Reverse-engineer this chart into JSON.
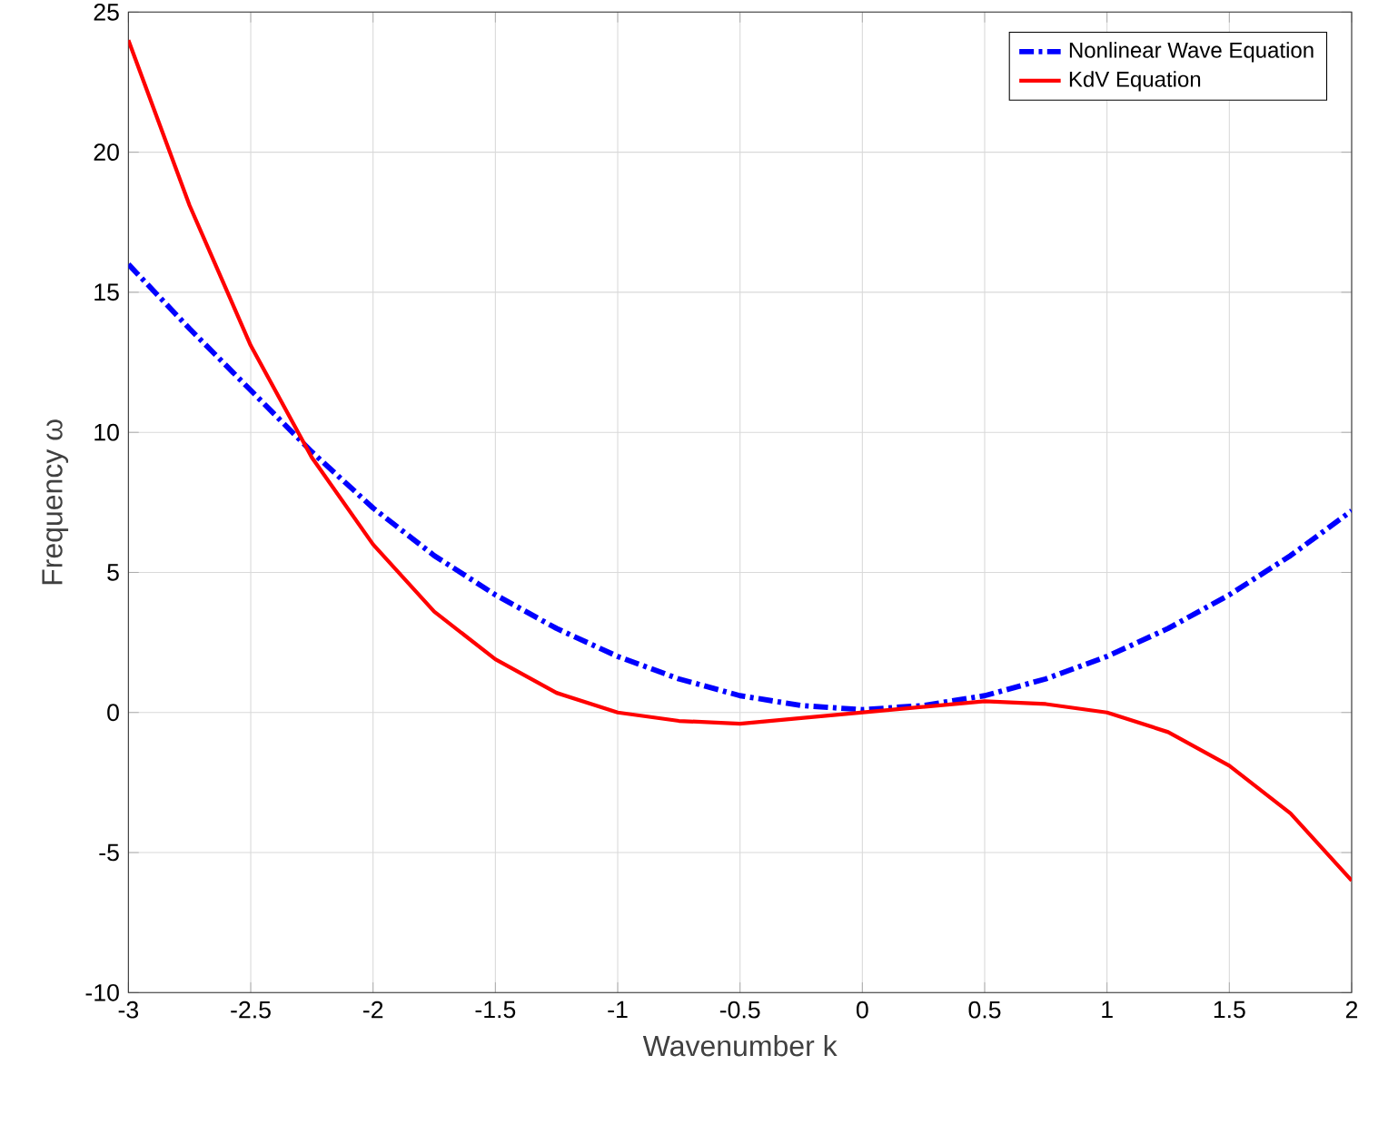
{
  "chart_data": {
    "type": "line",
    "xlabel": "Wavenumber k",
    "ylabel": "Frequency ω",
    "x": [
      -3,
      -2.75,
      -2.5,
      -2.25,
      -2,
      -1.75,
      -1.5,
      -1.25,
      -1,
      -0.75,
      -0.5,
      -0.25,
      0,
      0.25,
      0.5,
      0.75,
      1,
      1.25,
      1.5,
      1.75,
      2
    ],
    "series": [
      {
        "name": "Nonlinear Wave Equation",
        "color": "#0000ff",
        "line_style": "dashdot",
        "values": [
          16,
          13.7,
          11.5,
          9.3,
          7.3,
          5.6,
          4.2,
          3.0,
          2.0,
          1.2,
          0.6,
          0.25,
          0.1,
          0.25,
          0.6,
          1.2,
          2.0,
          3.0,
          4.2,
          5.6,
          7.2
        ]
      },
      {
        "name": "KdV Equation",
        "color": "#ff0000",
        "line_style": "solid",
        "values": [
          24,
          18.1,
          13.1,
          9.1,
          6.0,
          3.6,
          1.9,
          0.7,
          0,
          -0.3,
          -0.4,
          -0.2,
          0,
          0.2,
          0.4,
          0.3,
          0,
          -0.7,
          -1.9,
          -3.6,
          -6
        ]
      }
    ],
    "xlim": [
      -3,
      2
    ],
    "ylim": [
      -10,
      25
    ],
    "xticks": [
      -3,
      -2.5,
      -2,
      -1.5,
      -1,
      -0.5,
      0,
      0.5,
      1,
      1.5,
      2
    ],
    "yticks": [
      -10,
      -5,
      0,
      5,
      10,
      15,
      20,
      25
    ],
    "grid": true,
    "legend": "top right",
    "marker": "none"
  }
}
